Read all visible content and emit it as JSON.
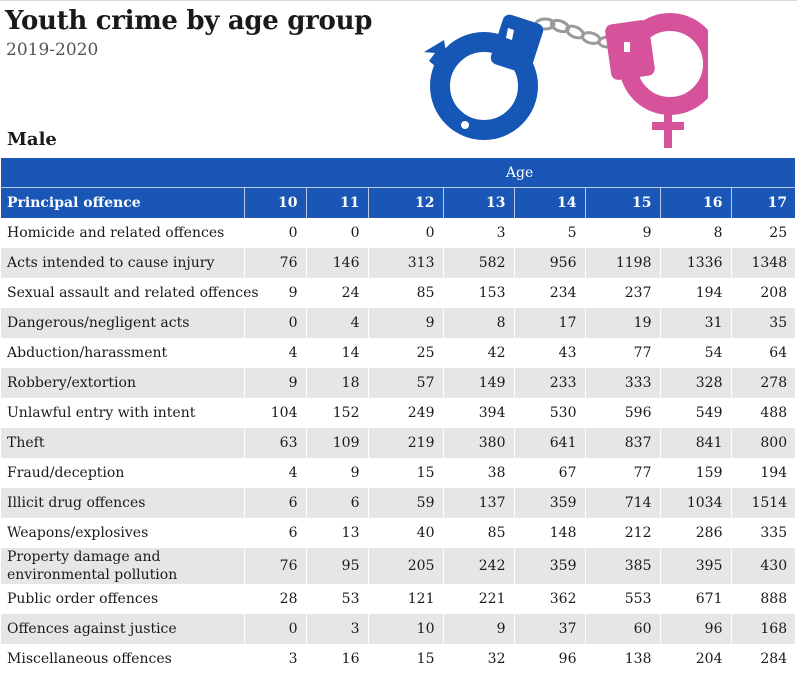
{
  "header": {
    "title": "Youth crime by age group",
    "subtitle": "2019-2020",
    "section": "Male"
  },
  "icons": [
    "male-symbol-icon",
    "female-symbol-icon",
    "handcuffs-icon"
  ],
  "colors": {
    "header_blue": "#1a56b6",
    "cuff_blue": "#1656b4",
    "cuff_pink": "#d6529a",
    "stripe_gray": "#e6e6e6"
  },
  "table": {
    "group_label": "Age",
    "first_col_header": "Principal offence",
    "ages": [
      "10",
      "11",
      "12",
      "13",
      "14",
      "15",
      "16",
      "17"
    ],
    "rows": [
      {
        "offence": "Homicide and related offences",
        "values": [
          "0",
          "0",
          "0",
          "3",
          "5",
          "9",
          "8",
          "25"
        ]
      },
      {
        "offence": "Acts intended to cause injury",
        "values": [
          "76",
          "146",
          "313",
          "582",
          "956",
          "1198",
          "1336",
          "1348"
        ]
      },
      {
        "offence": "Sexual assault and related offences",
        "values": [
          "9",
          "24",
          "85",
          "153",
          "234",
          "237",
          "194",
          "208"
        ]
      },
      {
        "offence": "Dangerous/negligent acts",
        "values": [
          "0",
          "4",
          "9",
          "8",
          "17",
          "19",
          "31",
          "35"
        ]
      },
      {
        "offence": "Abduction/harassment",
        "values": [
          "4",
          "14",
          "25",
          "42",
          "43",
          "77",
          "54",
          "64"
        ]
      },
      {
        "offence": "Robbery/extortion",
        "values": [
          "9",
          "18",
          "57",
          "149",
          "233",
          "333",
          "328",
          "278"
        ]
      },
      {
        "offence": "Unlawful entry with intent",
        "values": [
          "104",
          "152",
          "249",
          "394",
          "530",
          "596",
          "549",
          "488"
        ]
      },
      {
        "offence": "Theft",
        "values": [
          "63",
          "109",
          "219",
          "380",
          "641",
          "837",
          "841",
          "800"
        ]
      },
      {
        "offence": "Fraud/deception",
        "values": [
          "4",
          "9",
          "15",
          "38",
          "67",
          "77",
          "159",
          "194"
        ]
      },
      {
        "offence": "Illicit drug offences",
        "values": [
          "6",
          "6",
          "59",
          "137",
          "359",
          "714",
          "1034",
          "1514"
        ]
      },
      {
        "offence": "Weapons/explosives",
        "values": [
          "6",
          "13",
          "40",
          "85",
          "148",
          "212",
          "286",
          "335"
        ]
      },
      {
        "offence": "Property damage and environmental pollution",
        "values": [
          "76",
          "95",
          "205",
          "242",
          "359",
          "385",
          "395",
          "430"
        ]
      },
      {
        "offence": "Public order offences",
        "values": [
          "28",
          "53",
          "121",
          "221",
          "362",
          "553",
          "671",
          "888"
        ]
      },
      {
        "offence": "Offences against justice",
        "values": [
          "0",
          "3",
          "10",
          "9",
          "37",
          "60",
          "96",
          "168"
        ]
      },
      {
        "offence": "Miscellaneous offences",
        "values": [
          "3",
          "16",
          "15",
          "32",
          "96",
          "138",
          "204",
          "284"
        ]
      }
    ]
  }
}
